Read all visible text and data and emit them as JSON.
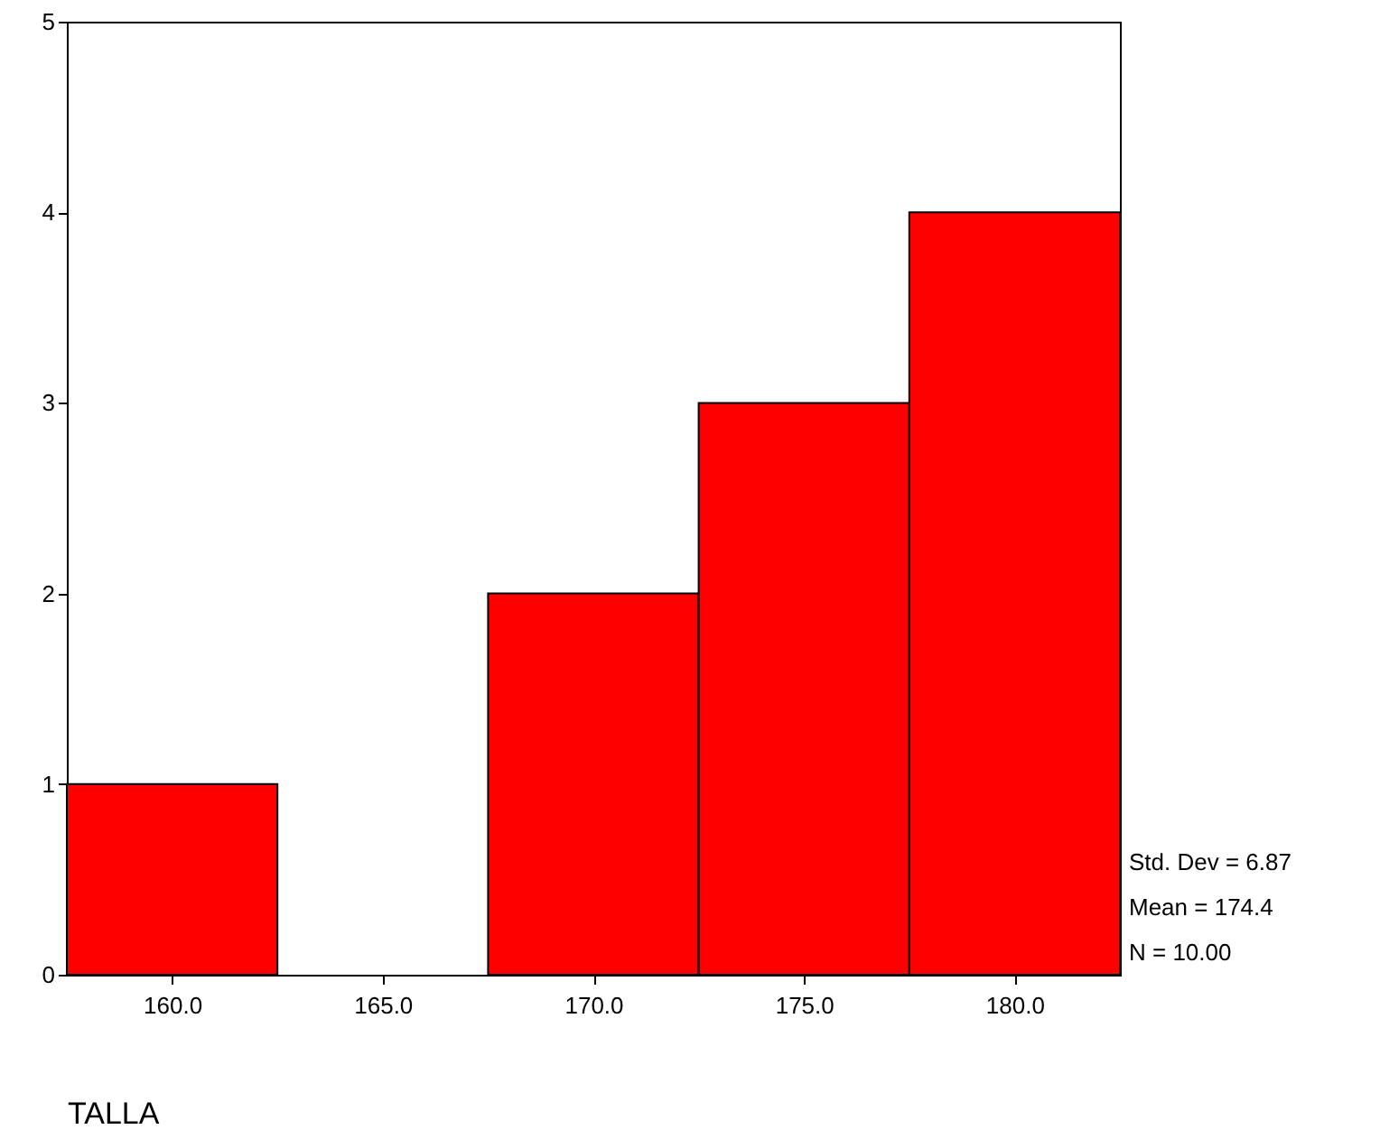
{
  "chart_data": {
    "type": "histogram",
    "xlabel": "TALLA",
    "bins": [
      157.5,
      162.5,
      167.5,
      172.5,
      177.5,
      182.5
    ],
    "values": [
      1,
      0,
      2,
      3,
      4
    ],
    "color": "#ff0000",
    "xlim": [
      157.5,
      182.5
    ],
    "xticks": [
      {
        "value": 160,
        "label": "160.0"
      },
      {
        "value": 165,
        "label": "165.0"
      },
      {
        "value": 170,
        "label": "170.0"
      },
      {
        "value": 175,
        "label": "175.0"
      },
      {
        "value": 180,
        "label": "180.0"
      }
    ],
    "ylim": [
      0,
      5
    ],
    "yticks": [
      0,
      1,
      2,
      3,
      4,
      5
    ],
    "grid": false,
    "annotations": [
      "Std. Dev = 6.87",
      "Mean = 174.4",
      "N = 10.00"
    ]
  }
}
